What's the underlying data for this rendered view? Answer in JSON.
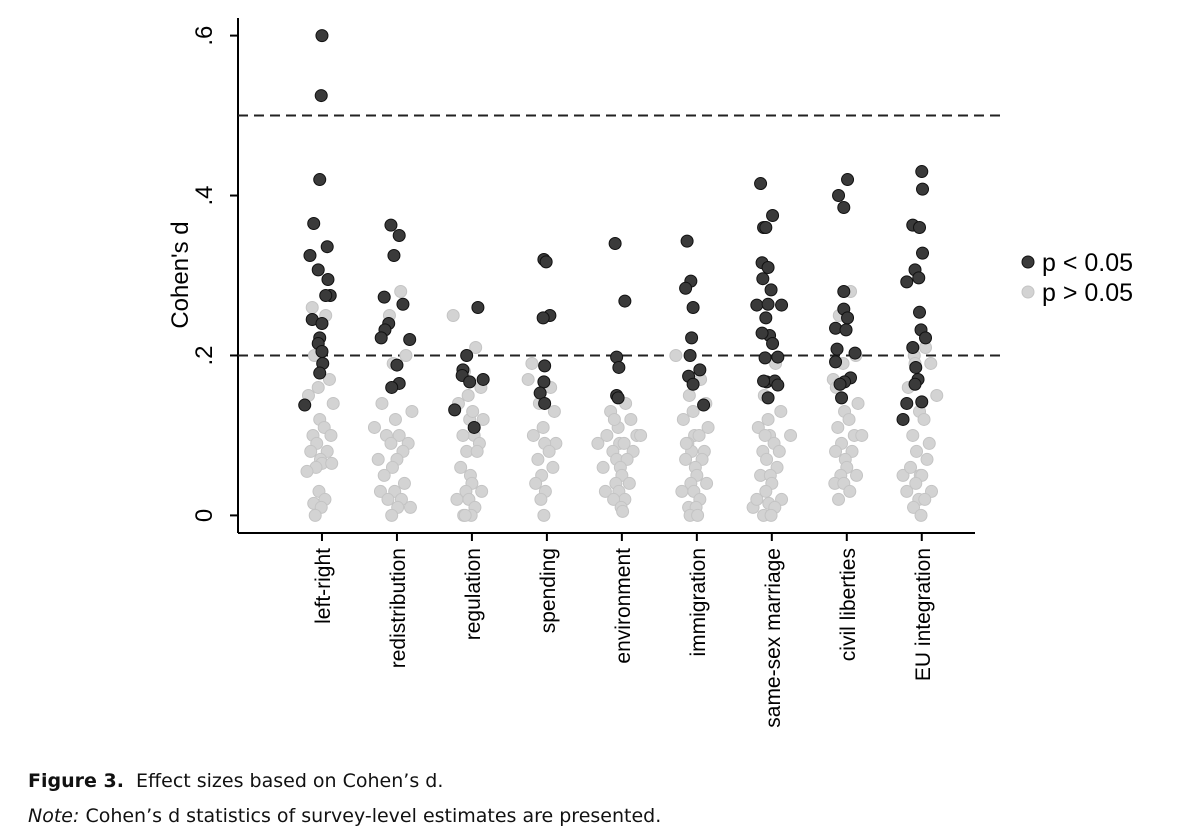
{
  "chart_data": {
    "type": "scatter",
    "y_label": "Cohen's d",
    "xlim": [
      -0.12,
      9.71
    ],
    "ylim": [
      -0.022,
      0.622
    ],
    "xticks": [
      {
        "value": 1,
        "label": "left-right"
      },
      {
        "value": 2,
        "label": "redistribution"
      },
      {
        "value": 3,
        "label": "regulation"
      },
      {
        "value": 4,
        "label": "spending"
      },
      {
        "value": 5,
        "label": "environment"
      },
      {
        "value": 6,
        "label": "immigration"
      },
      {
        "value": 7,
        "label": "same-sex marriage"
      },
      {
        "value": 8,
        "label": "civil liberties"
      },
      {
        "value": 9,
        "label": "EU integration"
      }
    ],
    "yticks": [
      {
        "value": 0,
        "label": "0"
      },
      {
        "value": 0.2,
        "label": ".2"
      },
      {
        "value": 0.4,
        "label": ".4"
      },
      {
        "value": 0.6,
        "label": ".6"
      }
    ],
    "reference_lines": [
      0.2,
      0.5
    ],
    "legend": "right",
    "series": [
      {
        "name": "p < 0.05",
        "color": "#3a3a3a",
        "x": [
          1.0,
          0.99,
          0.97,
          0.89,
          1.07,
          0.84,
          0.95,
          1.08,
          1.11,
          1.05,
          0.87,
          1.0,
          0.97,
          0.95,
          1.0,
          1.01,
          0.97,
          0.77,
          1.92,
          2.03,
          1.96,
          1.83,
          2.08,
          1.89,
          1.84,
          1.79,
          2.17,
          2.0,
          2.03,
          1.93,
          3.08,
          2.93,
          2.88,
          2.87,
          3.15,
          2.97,
          2.77,
          3.03,
          3.96,
          3.99,
          4.04,
          3.95,
          3.97,
          3.96,
          3.91,
          3.97,
          4.91,
          5.04,
          4.93,
          4.96,
          4.93,
          4.95,
          5.87,
          5.92,
          5.85,
          5.95,
          5.93,
          5.91,
          6.04,
          5.89,
          5.95,
          6.09,
          6.85,
          7.01,
          6.89,
          6.92,
          6.87,
          6.95,
          6.88,
          6.99,
          6.8,
          6.95,
          7.13,
          6.92,
          6.97,
          6.87,
          7.01,
          6.91,
          7.08,
          6.93,
          7.04,
          6.89,
          7.08,
          6.95,
          8.01,
          7.89,
          7.96,
          7.96,
          7.96,
          8.01,
          7.85,
          7.99,
          7.87,
          8.11,
          7.85,
          8.05,
          7.97,
          7.91,
          7.93,
          9.0,
          9.01,
          8.88,
          8.97,
          9.01,
          8.91,
          8.96,
          8.8,
          8.97,
          8.99,
          9.05,
          8.88,
          8.92,
          8.95,
          8.91,
          9.0,
          8.8,
          8.75
        ],
        "values": [
          0.6,
          0.525,
          0.42,
          0.365,
          0.336,
          0.325,
          0.307,
          0.295,
          0.275,
          0.275,
          0.245,
          0.24,
          0.222,
          0.215,
          0.205,
          0.19,
          0.178,
          0.138,
          0.363,
          0.35,
          0.325,
          0.273,
          0.264,
          0.24,
          0.232,
          0.222,
          0.22,
          0.188,
          0.165,
          0.16,
          0.26,
          0.2,
          0.182,
          0.175,
          0.17,
          0.167,
          0.132,
          0.11,
          0.32,
          0.317,
          0.25,
          0.247,
          0.187,
          0.167,
          0.153,
          0.14,
          0.34,
          0.268,
          0.198,
          0.185,
          0.15,
          0.147,
          0.343,
          0.293,
          0.284,
          0.26,
          0.222,
          0.2,
          0.182,
          0.174,
          0.164,
          0.138,
          0.415,
          0.375,
          0.36,
          0.36,
          0.316,
          0.31,
          0.296,
          0.282,
          0.263,
          0.264,
          0.263,
          0.247,
          0.225,
          0.228,
          0.215,
          0.197,
          0.198,
          0.167,
          0.168,
          0.168,
          0.163,
          0.147,
          0.42,
          0.4,
          0.385,
          0.28,
          0.258,
          0.247,
          0.234,
          0.232,
          0.208,
          0.203,
          0.192,
          0.172,
          0.167,
          0.164,
          0.147,
          0.43,
          0.408,
          0.363,
          0.36,
          0.328,
          0.307,
          0.297,
          0.292,
          0.254,
          0.232,
          0.222,
          0.21,
          0.185,
          0.17,
          0.164,
          0.142,
          0.14,
          0.12
        ]
      },
      {
        "name": "p > 0.05",
        "color": "#d3d3d3",
        "x": [
          0.87,
          1.05,
          0.9,
          1.1,
          0.95,
          0.82,
          1.15,
          0.97,
          1.03,
          0.88,
          1.12,
          0.93,
          1.07,
          0.85,
          0.98,
          1.0,
          0.92,
          1.13,
          0.8,
          0.96,
          1.04,
          0.89,
          0.99,
          0.91,
          1.01,
          1.7,
          2.05,
          1.9,
          2.12,
          1.95,
          1.8,
          2.2,
          1.98,
          2.03,
          1.86,
          2.15,
          1.92,
          2.08,
          1.75,
          2.0,
          1.94,
          1.83,
          2.1,
          1.78,
          1.97,
          2.06,
          1.88,
          2.01,
          2.18,
          1.93,
          2.75,
          3.05,
          2.9,
          3.12,
          2.95,
          2.82,
          3.15,
          2.97,
          3.03,
          2.88,
          3.1,
          2.93,
          3.07,
          2.85,
          2.98,
          3.0,
          2.92,
          3.13,
          2.8,
          2.96,
          3.04,
          2.89,
          2.99,
          2.91,
          3.01,
          3.75,
          4.05,
          3.9,
          4.1,
          3.95,
          3.82,
          4.12,
          3.97,
          4.03,
          3.88,
          4.08,
          3.93,
          3.85,
          3.98,
          3.92,
          3.8,
          3.96,
          4.68,
          5.05,
          4.85,
          5.12,
          4.95,
          4.8,
          5.2,
          4.97,
          5.03,
          4.88,
          5.15,
          4.93,
          5.07,
          4.75,
          4.98,
          5.0,
          4.92,
          5.1,
          4.78,
          4.96,
          5.04,
          4.89,
          4.99,
          5.25,
          5.01,
          4.9,
          5.72,
          6.05,
          5.9,
          6.12,
          5.95,
          5.82,
          6.15,
          5.97,
          6.03,
          5.88,
          6.1,
          5.93,
          6.07,
          5.85,
          5.98,
          6.0,
          5.92,
          6.13,
          5.8,
          5.96,
          6.04,
          5.89,
          5.99,
          5.91,
          6.01,
          5.86,
          6.75,
          7.05,
          6.9,
          7.12,
          6.95,
          6.82,
          7.25,
          6.97,
          7.03,
          6.88,
          7.1,
          6.93,
          7.07,
          6.85,
          6.98,
          7.0,
          6.92,
          7.13,
          6.8,
          6.96,
          7.04,
          6.89,
          6.99,
          6.91,
          7.82,
          8.05,
          7.9,
          8.12,
          7.95,
          7.86,
          8.15,
          7.97,
          8.03,
          7.88,
          8.1,
          7.93,
          8.07,
          7.85,
          7.98,
          8.0,
          7.92,
          8.13,
          7.84,
          7.96,
          8.04,
          7.89,
          8.2,
          8.75,
          9.05,
          8.9,
          9.12,
          8.95,
          8.82,
          9.2,
          8.97,
          9.03,
          8.88,
          9.1,
          8.93,
          9.07,
          8.85,
          8.98,
          9.0,
          8.92,
          9.13,
          8.8,
          8.96,
          9.04,
          8.89,
          8.99,
          8.91
        ],
        "values": [
          0.26,
          0.25,
          0.2,
          0.17,
          0.16,
          0.15,
          0.14,
          0.12,
          0.11,
          0.1,
          0.1,
          0.09,
          0.08,
          0.08,
          0.07,
          0.065,
          0.06,
          0.065,
          0.055,
          0.03,
          0.02,
          0.015,
          0.01,
          0.0,
          0.19,
          0.11,
          0.28,
          0.25,
          0.2,
          0.19,
          0.14,
          0.13,
          0.12,
          0.1,
          0.1,
          0.09,
          0.09,
          0.08,
          0.07,
          0.07,
          0.06,
          0.05,
          0.04,
          0.03,
          0.03,
          0.02,
          0.02,
          0.01,
          0.01,
          0.0,
          0.25,
          0.21,
          0.18,
          0.16,
          0.15,
          0.14,
          0.12,
          0.12,
          0.1,
          0.1,
          0.09,
          0.08,
          0.08,
          0.06,
          0.05,
          0.04,
          0.03,
          0.03,
          0.02,
          0.02,
          0.01,
          0.0,
          0.0,
          0.0,
          0.13,
          0.17,
          0.16,
          0.14,
          0.13,
          0.11,
          0.1,
          0.09,
          0.09,
          0.08,
          0.07,
          0.06,
          0.05,
          0.04,
          0.03,
          0.02,
          0.19,
          0.0,
          0.09,
          0.14,
          0.13,
          0.12,
          0.11,
          0.1,
          0.1,
          0.09,
          0.09,
          0.08,
          0.08,
          0.07,
          0.07,
          0.06,
          0.06,
          0.05,
          0.04,
          0.04,
          0.03,
          0.03,
          0.02,
          0.02,
          0.01,
          0.1,
          0.005,
          0.12,
          0.2,
          0.17,
          0.15,
          0.14,
          0.13,
          0.12,
          0.11,
          0.1,
          0.1,
          0.09,
          0.08,
          0.08,
          0.07,
          0.07,
          0.06,
          0.05,
          0.04,
          0.04,
          0.03,
          0.03,
          0.02,
          0.01,
          0.01,
          0.0,
          0.0,
          0.09,
          0.01,
          0.19,
          0.15,
          0.13,
          0.12,
          0.11,
          0.1,
          0.1,
          0.09,
          0.08,
          0.08,
          0.07,
          0.06,
          0.05,
          0.05,
          0.04,
          0.03,
          0.02,
          0.02,
          0.015,
          0.01,
          0.0,
          0.0,
          0.1,
          0.17,
          0.28,
          0.25,
          0.2,
          0.19,
          0.16,
          0.14,
          0.13,
          0.12,
          0.11,
          0.1,
          0.09,
          0.08,
          0.08,
          0.07,
          0.06,
          0.05,
          0.05,
          0.04,
          0.04,
          0.03,
          0.02,
          0.1,
          0.05,
          0.21,
          0.2,
          0.19,
          0.17,
          0.16,
          0.15,
          0.13,
          0.12,
          0.1,
          0.09,
          0.08,
          0.07,
          0.06,
          0.05,
          0.05,
          0.04,
          0.03,
          0.03,
          0.02,
          0.02,
          0.01,
          0.0,
          0.19
        ]
      }
    ]
  },
  "caption": {
    "label": "Figure 3.",
    "text": "Effect sizes based on Cohen’s d."
  },
  "note": {
    "label": "Note:",
    "text": "Cohen’s d statistics of survey-level estimates are presented."
  }
}
